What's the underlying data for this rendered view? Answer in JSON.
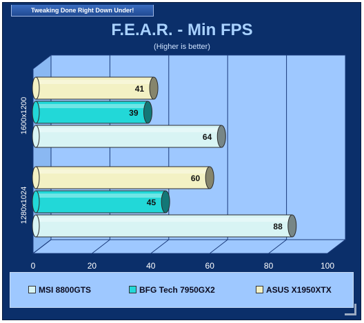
{
  "header": {
    "tagline": "Tweaking Done Right Down Under!"
  },
  "chart_data": {
    "type": "bar",
    "orientation": "horizontal",
    "title": "F.E.A.R. - Min FPS",
    "subtitle": "(Higher is better)",
    "categories": [
      "1600x1200",
      "1280x1024"
    ],
    "series": [
      {
        "name": "MSI 8800GTS",
        "values": [
          64,
          88
        ],
        "color": "#d8f4f4"
      },
      {
        "name": "BFG Tech 7950GX2",
        "values": [
          39,
          45
        ],
        "color": "#22d8d8"
      },
      {
        "name": "ASUS X1950XTX",
        "values": [
          41,
          60
        ],
        "color": "#f3f1c4"
      }
    ],
    "xlim": [
      0,
      100
    ],
    "xticks": [
      "0",
      "20",
      "40",
      "60",
      "80",
      "100"
    ],
    "grid": true,
    "legend_position": "bottom",
    "colors": {
      "frame": "#0b2f6a",
      "plot_area": "#9ec8ff",
      "title": "#a9d2ff"
    }
  }
}
